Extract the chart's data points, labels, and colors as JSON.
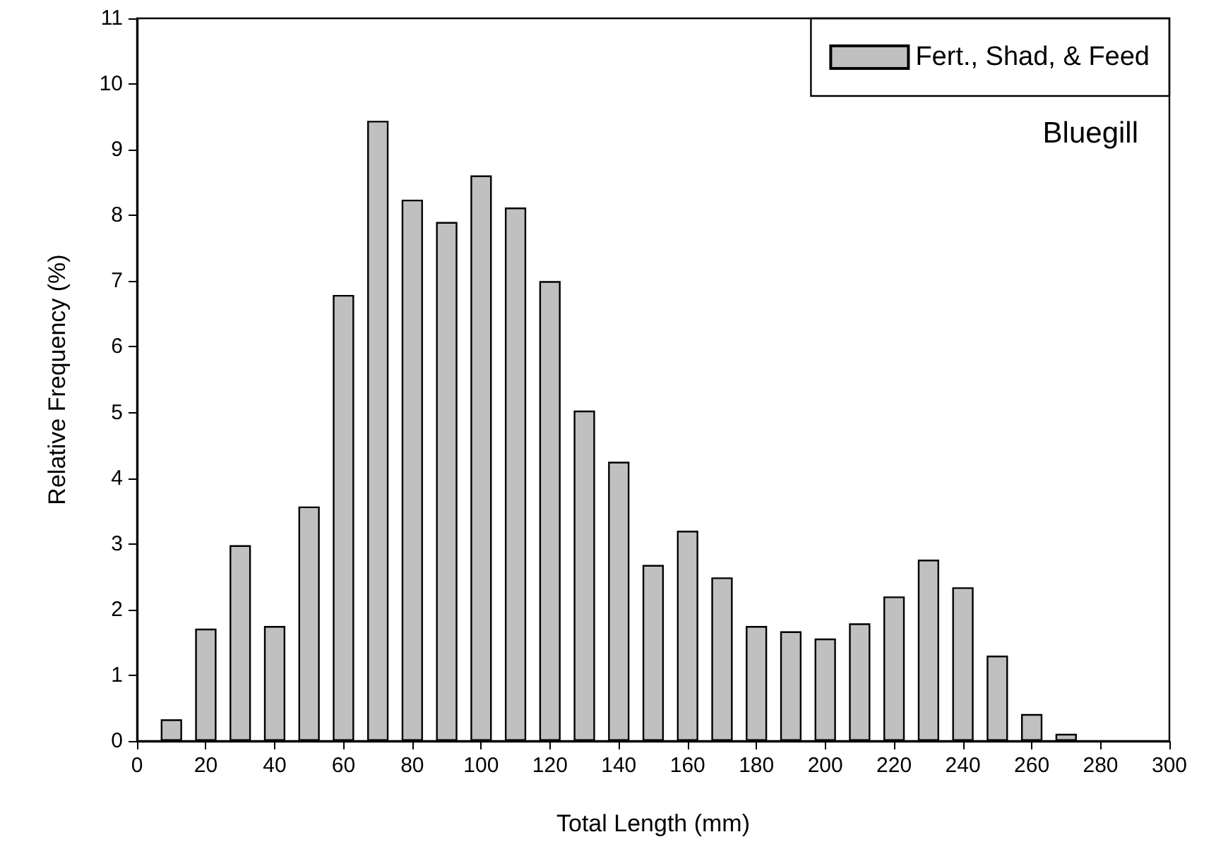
{
  "chart_data": {
    "type": "bar",
    "xlabel": "Total Length (mm)",
    "ylabel": "Relative Frequency (%)",
    "x": [
      10,
      20,
      30,
      40,
      50,
      60,
      70,
      80,
      90,
      100,
      110,
      120,
      130,
      140,
      150,
      160,
      170,
      180,
      190,
      200,
      210,
      220,
      230,
      240,
      250,
      260,
      270
    ],
    "series": [
      {
        "name": "Fert., Shad, & Feed",
        "color": "#c0c0c0",
        "values": [
          0.33,
          1.71,
          2.98,
          1.75,
          3.57,
          6.79,
          9.44,
          8.24,
          7.9,
          8.61,
          8.12,
          7.0,
          5.03,
          4.25,
          2.68,
          3.2,
          2.49,
          1.75,
          1.67,
          1.56,
          1.79,
          2.2,
          2.76,
          2.34,
          1.3,
          0.41,
          0.11
        ]
      }
    ],
    "xlim": [
      0,
      300
    ],
    "xticks": [
      0,
      20,
      40,
      60,
      80,
      100,
      120,
      140,
      160,
      180,
      200,
      220,
      240,
      260,
      280,
      300
    ],
    "ylim": [
      0,
      11
    ],
    "yticks": [
      0,
      1,
      2,
      3,
      4,
      5,
      6,
      7,
      8,
      9,
      10,
      11
    ],
    "annotations": [
      "Bluegill"
    ],
    "legend": "top right",
    "grid": false
  }
}
